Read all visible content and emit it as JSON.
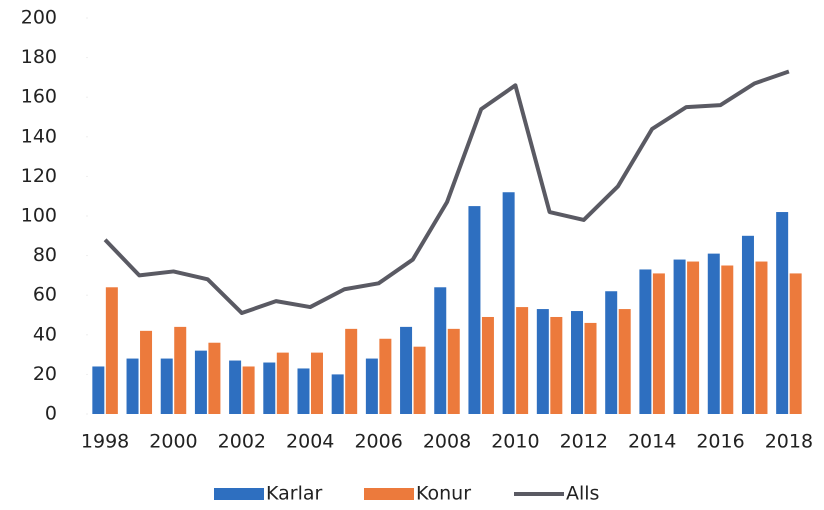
{
  "chart_data": {
    "type": "bar-line",
    "categories": [
      "1998",
      null,
      "2000",
      null,
      "2002",
      null,
      "2004",
      null,
      "2006",
      null,
      "2008",
      null,
      "2010",
      null,
      "2012",
      null,
      "2014",
      null,
      "2016",
      null,
      "2018"
    ],
    "series": [
      {
        "name": "Karlar",
        "type": "bar",
        "color": "#2e6fc0",
        "values": [
          24,
          28,
          28,
          32,
          27,
          26,
          23,
          20,
          28,
          44,
          64,
          105,
          112,
          53,
          52,
          62,
          73,
          78,
          81,
          90,
          102
        ]
      },
      {
        "name": "Konur",
        "type": "bar",
        "color": "#ec7a3c",
        "values": [
          64,
          42,
          44,
          36,
          24,
          31,
          31,
          43,
          38,
          34,
          43,
          49,
          54,
          49,
          46,
          53,
          71,
          77,
          75,
          77,
          71
        ]
      },
      {
        "name": "Alls",
        "type": "line",
        "color": "#5a5a63",
        "values": [
          88,
          70,
          72,
          68,
          51,
          57,
          54,
          63,
          66,
          78,
          107,
          154,
          166,
          102,
          98,
          115,
          144,
          155,
          156,
          167,
          173
        ]
      }
    ],
    "ylim": [
      0,
      200
    ],
    "yticks": [
      0,
      20,
      40,
      60,
      80,
      100,
      120,
      140,
      160,
      180,
      200
    ],
    "legend": "bottom"
  }
}
